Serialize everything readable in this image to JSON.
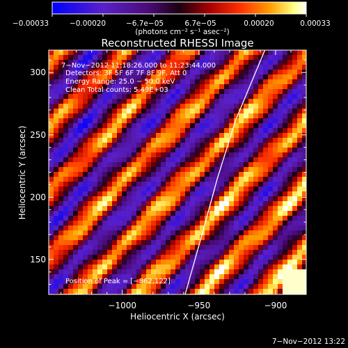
{
  "chart_data": {
    "type": "heatmap",
    "title": "Reconstructed RHESSI Image",
    "xlabel": "Heliocentric X (arcsec)",
    "ylabel": "Heliocentric Y (arcsec)",
    "x_ticks": [
      "−1000",
      "−950",
      "−900"
    ],
    "x_tick_values": [
      -1000,
      -950,
      -900
    ],
    "y_ticks": [
      "150",
      "200",
      "250",
      "300"
    ],
    "y_tick_values": [
      150,
      200,
      250,
      300
    ],
    "xlim": [
      -1048,
      -880
    ],
    "ylim": [
      122,
      318
    ],
    "colorbar": {
      "tick_labels": [
        "−0.00033",
        "−0.00020",
        "−6.7e−05",
        "6.7e−05",
        "0.00020",
        "0.00033"
      ],
      "range": [
        -0.00033,
        0.00033
      ],
      "unit_label": "(photons cm⁻² s⁻¹ asec⁻²)",
      "colors": [
        "#0000ff",
        "#5a20c8",
        "#4a0a78",
        "#1a0010",
        "#a80000",
        "#ff3000",
        "#ffa000",
        "#ffff80",
        "#ffffff"
      ]
    },
    "annotations": [
      "7−Nov−2012 11:18:26.000 to 11:23:44.000",
      "Detectors: 3F 5F 6F 7F 8F 9F, Att 0",
      "Energy Range: 25.0 − 50.0 keV",
      "Clean    Total counts: 5.49E+03",
      "Position of Peak = [−862,122]"
    ],
    "peak_position": [
      -862,
      122
    ],
    "limb_curve_points": [
      [
        -959,
        122
      ],
      [
        -948,
        170
      ],
      [
        -938,
        215
      ],
      [
        -926,
        262
      ],
      [
        -907,
        318
      ]
    ]
  },
  "timestamp": "7−Nov−2012 13:22"
}
